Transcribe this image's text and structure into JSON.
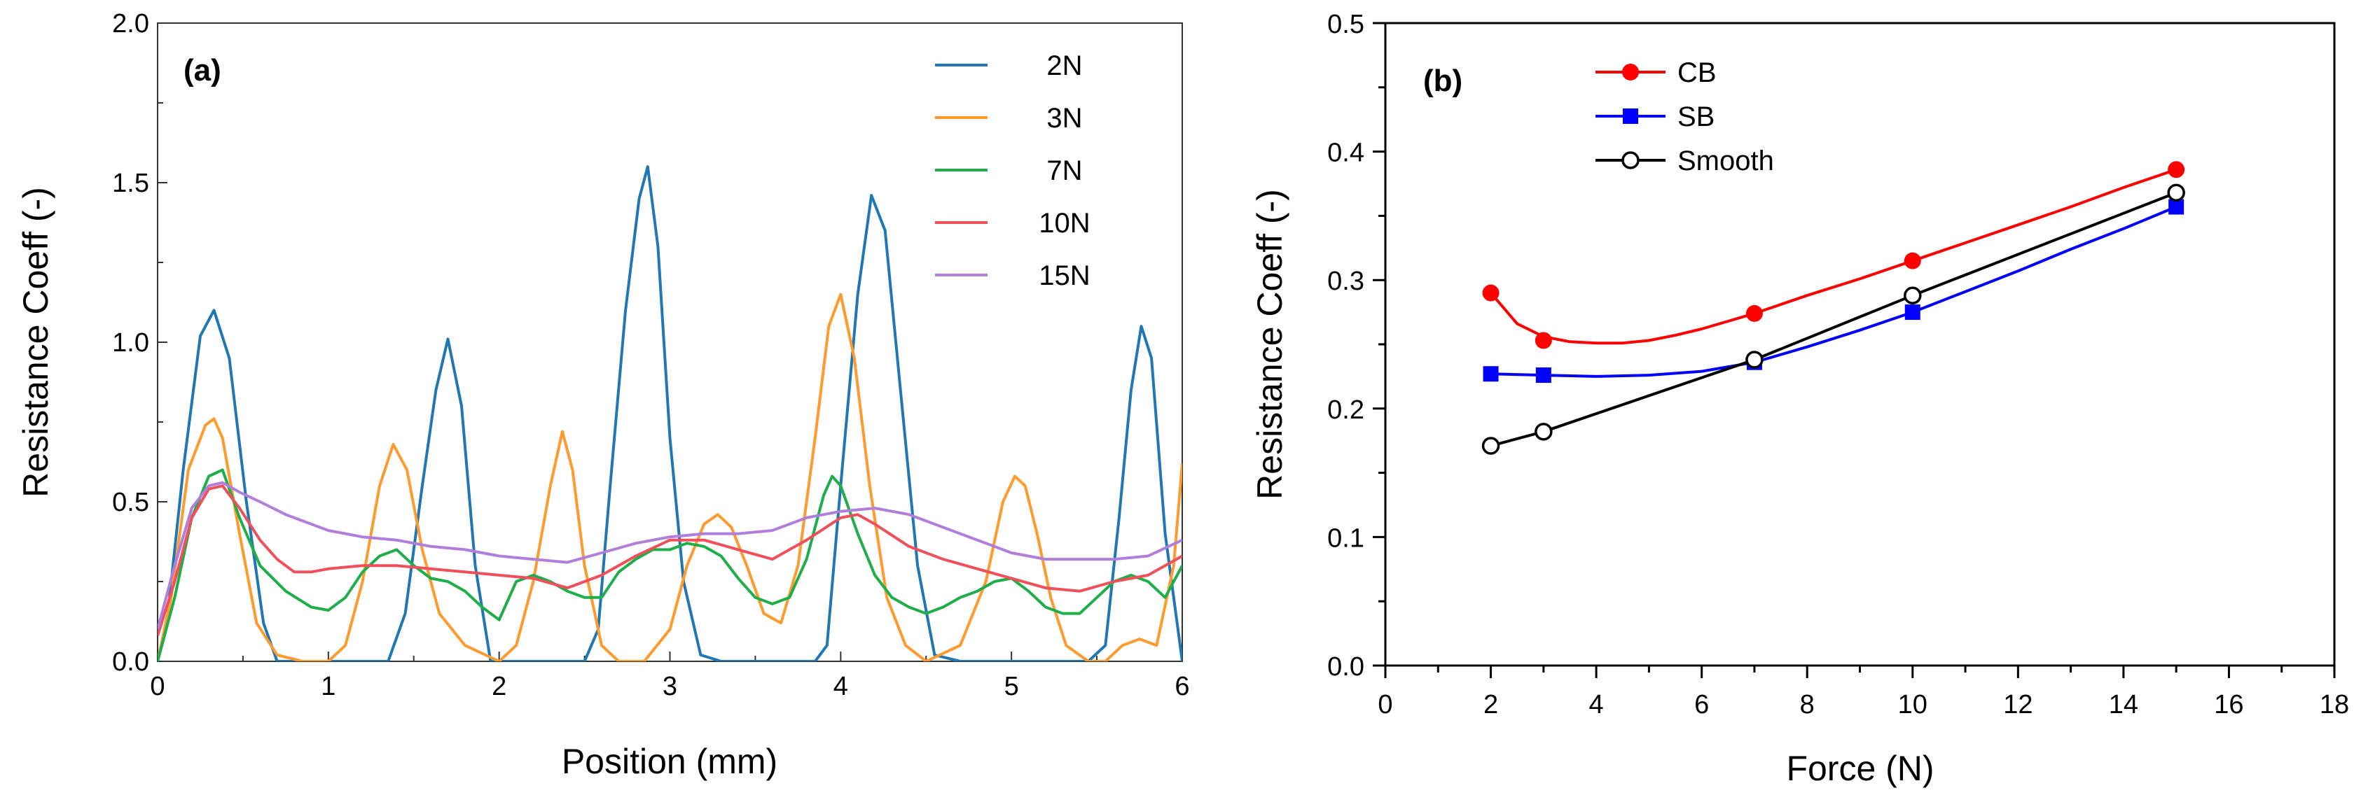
{
  "chart_data": [
    {
      "panel_label": "(a)",
      "type": "line",
      "xlabel": "Position (mm)",
      "ylabel": "Resistance Coeff (-)",
      "xlim": [
        0,
        6
      ],
      "ylim": [
        0,
        2
      ],
      "x_ticks": [
        0,
        1,
        2,
        3,
        4,
        5,
        6
      ],
      "y_ticks": [
        0,
        0.5,
        1,
        1.5,
        2
      ],
      "x_tick_labels": [
        "0",
        "1",
        "2",
        "3",
        "4",
        "5",
        "6"
      ],
      "y_tick_labels": [
        "0.0",
        "0.5",
        "1.0",
        "1.5",
        "2.0"
      ],
      "legend_position": "top-right",
      "series": [
        {
          "name": "2N",
          "color": "#1f77b4",
          "x": [
            0,
            0.05,
            0.15,
            0.25,
            0.33,
            0.42,
            0.52,
            0.62,
            0.7,
            0.8,
            1.0,
            1.2,
            1.35,
            1.45,
            1.55,
            1.63,
            1.7,
            1.78,
            1.86,
            1.95,
            2.1,
            2.3,
            2.5,
            2.58,
            2.65,
            2.74,
            2.82,
            2.87,
            2.93,
            3.0,
            3.08,
            3.18,
            3.3,
            3.5,
            3.7,
            3.85,
            3.92,
            4.0,
            4.1,
            4.18,
            4.26,
            4.35,
            4.45,
            4.55,
            4.7,
            4.9,
            5.1,
            5.3,
            5.45,
            5.55,
            5.63,
            5.7,
            5.76,
            5.82,
            5.9,
            6.0
          ],
          "y": [
            0,
            0.1,
            0.6,
            1.02,
            1.1,
            0.95,
            0.5,
            0.12,
            0,
            0,
            0,
            0,
            0,
            0.15,
            0.55,
            0.85,
            1.01,
            0.8,
            0.3,
            0,
            0,
            0,
            0,
            0.1,
            0.55,
            1.1,
            1.45,
            1.55,
            1.3,
            0.7,
            0.25,
            0.02,
            0,
            0,
            0,
            0,
            0.05,
            0.55,
            1.15,
            1.46,
            1.35,
            0.85,
            0.3,
            0.02,
            0,
            0,
            0,
            0,
            0,
            0.05,
            0.45,
            0.85,
            1.05,
            0.95,
            0.4,
            0
          ]
        },
        {
          "name": "3N",
          "color": "#ff9a2e",
          "x": [
            0,
            0.08,
            0.18,
            0.28,
            0.33,
            0.38,
            0.48,
            0.58,
            0.7,
            0.85,
            1.0,
            1.1,
            1.2,
            1.3,
            1.38,
            1.46,
            1.55,
            1.65,
            1.8,
            2.0,
            2.1,
            2.2,
            2.3,
            2.37,
            2.43,
            2.5,
            2.6,
            2.7,
            2.85,
            3.0,
            3.1,
            3.2,
            3.28,
            3.36,
            3.45,
            3.55,
            3.65,
            3.75,
            3.85,
            3.93,
            4.0,
            4.08,
            4.17,
            4.27,
            4.38,
            4.5,
            4.7,
            4.85,
            4.95,
            5.02,
            5.08,
            5.15,
            5.23,
            5.32,
            5.45,
            5.55,
            5.65,
            5.75,
            5.85,
            5.95,
            6.0
          ],
          "y": [
            0,
            0.2,
            0.6,
            0.74,
            0.76,
            0.7,
            0.4,
            0.12,
            0.02,
            0,
            0,
            0.05,
            0.25,
            0.55,
            0.68,
            0.6,
            0.35,
            0.15,
            0.05,
            0,
            0.05,
            0.25,
            0.55,
            0.72,
            0.6,
            0.3,
            0.05,
            0,
            0,
            0.1,
            0.3,
            0.43,
            0.46,
            0.42,
            0.3,
            0.15,
            0.12,
            0.3,
            0.7,
            1.05,
            1.15,
            0.95,
            0.55,
            0.2,
            0.05,
            0,
            0.05,
            0.25,
            0.5,
            0.58,
            0.55,
            0.4,
            0.2,
            0.05,
            0,
            0,
            0.05,
            0.07,
            0.05,
            0.3,
            0.62
          ]
        },
        {
          "name": "7N",
          "color": "#1fae4a",
          "x": [
            0,
            0.1,
            0.2,
            0.3,
            0.38,
            0.48,
            0.6,
            0.75,
            0.9,
            1.0,
            1.1,
            1.2,
            1.3,
            1.4,
            1.5,
            1.6,
            1.7,
            1.8,
            1.9,
            2.0,
            2.1,
            2.2,
            2.3,
            2.4,
            2.5,
            2.6,
            2.7,
            2.8,
            2.9,
            3.0,
            3.1,
            3.2,
            3.3,
            3.4,
            3.5,
            3.6,
            3.7,
            3.8,
            3.9,
            3.95,
            4.0,
            4.1,
            4.2,
            4.3,
            4.4,
            4.5,
            4.6,
            4.7,
            4.8,
            4.9,
            5.0,
            5.1,
            5.2,
            5.3,
            5.4,
            5.5,
            5.6,
            5.7,
            5.8,
            5.9,
            6.0
          ],
          "y": [
            0,
            0.2,
            0.45,
            0.58,
            0.6,
            0.45,
            0.3,
            0.22,
            0.17,
            0.16,
            0.2,
            0.28,
            0.33,
            0.35,
            0.3,
            0.26,
            0.25,
            0.22,
            0.17,
            0.13,
            0.25,
            0.27,
            0.25,
            0.22,
            0.2,
            0.2,
            0.28,
            0.32,
            0.35,
            0.35,
            0.37,
            0.36,
            0.33,
            0.26,
            0.2,
            0.18,
            0.2,
            0.32,
            0.52,
            0.58,
            0.55,
            0.4,
            0.27,
            0.2,
            0.17,
            0.15,
            0.17,
            0.2,
            0.22,
            0.25,
            0.26,
            0.22,
            0.17,
            0.15,
            0.15,
            0.2,
            0.25,
            0.27,
            0.25,
            0.2,
            0.3
          ]
        },
        {
          "name": "10N",
          "color": "#f0505a",
          "x": [
            0,
            0.1,
            0.2,
            0.3,
            0.38,
            0.48,
            0.6,
            0.7,
            0.8,
            0.9,
            1.0,
            1.2,
            1.4,
            1.6,
            1.8,
            2.0,
            2.2,
            2.4,
            2.6,
            2.8,
            3.0,
            3.2,
            3.4,
            3.6,
            3.8,
            4.0,
            4.1,
            4.2,
            4.4,
            4.6,
            4.8,
            5.0,
            5.2,
            5.4,
            5.6,
            5.8,
            6.0
          ],
          "y": [
            0.08,
            0.25,
            0.45,
            0.54,
            0.55,
            0.48,
            0.38,
            0.32,
            0.28,
            0.28,
            0.29,
            0.3,
            0.3,
            0.29,
            0.28,
            0.27,
            0.26,
            0.23,
            0.27,
            0.33,
            0.38,
            0.38,
            0.35,
            0.32,
            0.38,
            0.45,
            0.46,
            0.43,
            0.36,
            0.32,
            0.29,
            0.26,
            0.23,
            0.22,
            0.25,
            0.27,
            0.33
          ]
        },
        {
          "name": "15N",
          "color": "#b07fdb",
          "x": [
            0,
            0.1,
            0.2,
            0.3,
            0.38,
            0.48,
            0.6,
            0.75,
            0.9,
            1.0,
            1.2,
            1.4,
            1.6,
            1.8,
            2.0,
            2.2,
            2.4,
            2.6,
            2.8,
            3.0,
            3.2,
            3.4,
            3.6,
            3.8,
            4.0,
            4.2,
            4.4,
            4.6,
            4.8,
            5.0,
            5.2,
            5.4,
            5.6,
            5.8,
            6.0
          ],
          "y": [
            0.1,
            0.3,
            0.48,
            0.55,
            0.56,
            0.53,
            0.5,
            0.46,
            0.43,
            0.41,
            0.39,
            0.38,
            0.36,
            0.35,
            0.33,
            0.32,
            0.31,
            0.34,
            0.37,
            0.39,
            0.4,
            0.4,
            0.41,
            0.45,
            0.47,
            0.48,
            0.46,
            0.42,
            0.38,
            0.34,
            0.32,
            0.32,
            0.32,
            0.33,
            0.38
          ]
        }
      ]
    },
    {
      "panel_label": "(b)",
      "type": "line",
      "xlabel": "Force (N)",
      "ylabel": "Resistance Coeff (-)",
      "xlim": [
        0,
        18
      ],
      "ylim": [
        0,
        0.5
      ],
      "x_ticks": [
        0,
        2,
        4,
        6,
        8,
        10,
        12,
        14,
        16,
        18
      ],
      "y_ticks": [
        0,
        0.1,
        0.2,
        0.3,
        0.4,
        0.5
      ],
      "x_tick_labels": [
        "0",
        "2",
        "4",
        "6",
        "8",
        "10",
        "12",
        "14",
        "16",
        "18"
      ],
      "y_tick_labels": [
        "0.0",
        "0.1",
        "0.2",
        "0.3",
        "0.4",
        "0.5"
      ],
      "legend_position": "top-left",
      "series": [
        {
          "name": "CB",
          "color": "#ff0000",
          "marker": "filled-circle",
          "x": [
            2,
            3,
            7,
            10,
            15
          ],
          "y": [
            0.29,
            0.253,
            0.274,
            0.315,
            0.386
          ],
          "curve_x": [
            2,
            2.5,
            3,
            3.5,
            4,
            4.5,
            5,
            5.5,
            6,
            6.5,
            7,
            8,
            9,
            10,
            11,
            12,
            13,
            14,
            15
          ],
          "curve_y": [
            0.29,
            0.266,
            0.256,
            0.252,
            0.251,
            0.251,
            0.253,
            0.257,
            0.262,
            0.268,
            0.274,
            0.288,
            0.301,
            0.315,
            0.329,
            0.343,
            0.357,
            0.372,
            0.386
          ]
        },
        {
          "name": "SB",
          "color": "#0000ff",
          "marker": "filled-square",
          "x": [
            2,
            3,
            7,
            10,
            15
          ],
          "y": [
            0.227,
            0.226,
            0.236,
            0.275,
            0.357
          ],
          "curve_x": [
            2,
            3,
            4,
            5,
            6,
            7,
            8,
            9,
            10,
            11,
            12,
            13,
            14,
            15
          ],
          "curve_y": [
            0.227,
            0.226,
            0.225,
            0.226,
            0.229,
            0.236,
            0.248,
            0.261,
            0.275,
            0.291,
            0.307,
            0.324,
            0.34,
            0.357
          ]
        },
        {
          "name": "Smooth",
          "color": "#000000",
          "marker": "open-circle",
          "x": [
            2,
            3,
            7,
            10,
            15
          ],
          "y": [
            0.171,
            0.182,
            0.238,
            0.288,
            0.368
          ],
          "curve_x": [
            2,
            3,
            7,
            10,
            15
          ],
          "curve_y": [
            0.171,
            0.182,
            0.238,
            0.288,
            0.368
          ]
        }
      ]
    }
  ]
}
